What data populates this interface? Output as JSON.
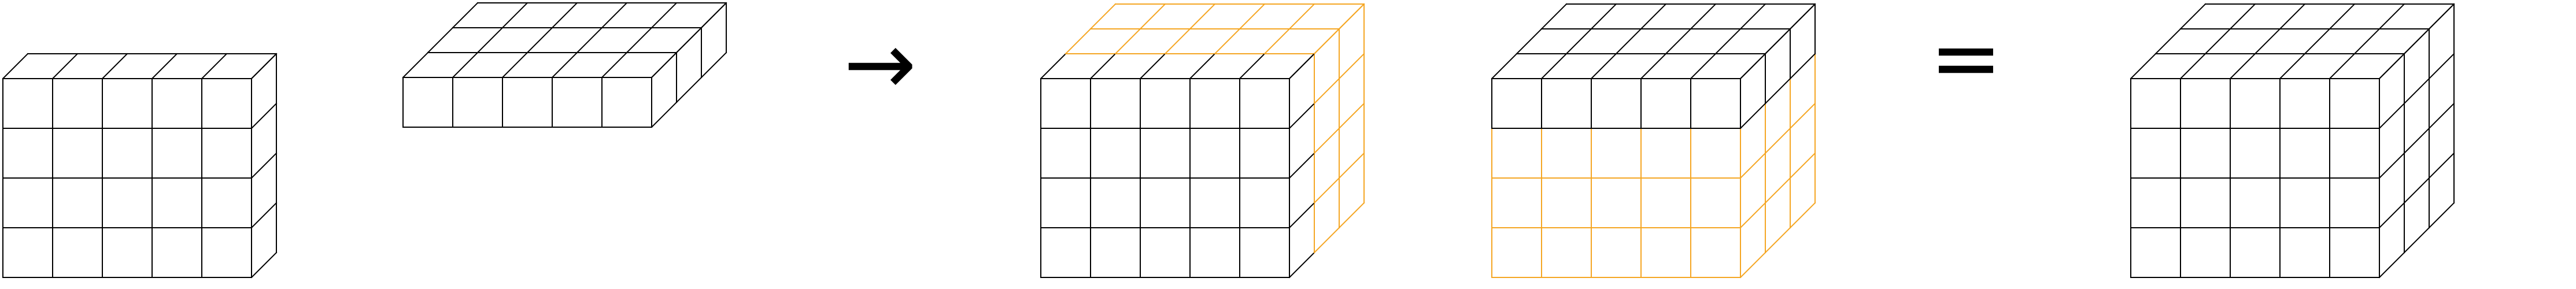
{
  "colors": {
    "outline": "#000000",
    "highlight": "#f5a623",
    "background": "#ffffff"
  },
  "operators": {
    "arrow": "→",
    "equals": "="
  },
  "blocks": [
    {
      "name": "block-full-cube",
      "width": 5,
      "height": 4,
      "depth": 1,
      "highlight": "none"
    },
    {
      "name": "block-flat-slab",
      "width": 5,
      "height": 1,
      "depth": 3,
      "highlight": "none"
    },
    {
      "name": "block-front-cube-with-ghost-back",
      "width": 5,
      "height": 4,
      "depth": 3,
      "highlight": "back"
    },
    {
      "name": "block-top-slab-with-ghost-bottom",
      "width": 5,
      "height": 4,
      "depth": 3,
      "highlight": "bottom"
    },
    {
      "name": "block-result-cube",
      "width": 5,
      "height": 4,
      "depth": 3,
      "highlight": "none"
    }
  ]
}
